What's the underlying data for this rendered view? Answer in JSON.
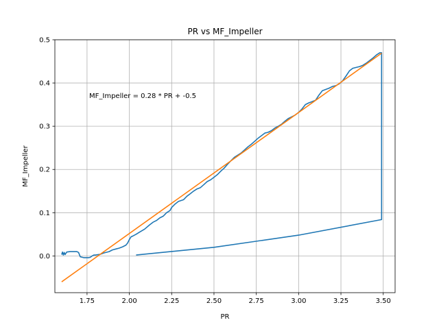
{
  "chart_data": {
    "type": "line",
    "title": "PR vs MF_Impeller",
    "xlabel": "PR",
    "ylabel": "MF_Impeller",
    "xlim": [
      1.56,
      3.57
    ],
    "ylim": [
      -0.085,
      0.5
    ],
    "x_ticks": [
      1.75,
      2.0,
      2.25,
      2.5,
      2.75,
      3.0,
      3.25,
      3.5
    ],
    "x_tick_labels": [
      "1.75",
      "2.00",
      "2.25",
      "2.50",
      "2.75",
      "3.00",
      "3.25",
      "3.50"
    ],
    "y_ticks": [
      0.0,
      0.1,
      0.2,
      0.3,
      0.4,
      0.5
    ],
    "y_tick_labels": [
      "0.0",
      "0.1",
      "0.2",
      "0.3",
      "0.4",
      "0.5"
    ],
    "grid": true,
    "annotation": "MF_Impeller = 0.28 * PR + -0.5",
    "series": [
      {
        "color": "#1f77b4",
        "x": [
          1.6,
          1.605,
          1.61,
          1.615,
          1.62,
          1.63,
          1.65,
          1.69,
          1.7,
          1.71,
          1.73,
          1.76,
          1.77,
          1.78,
          1.79,
          1.8,
          1.83,
          1.85,
          1.88,
          1.9,
          1.92,
          1.94,
          1.96,
          1.98,
          1.99,
          2.0,
          2.01,
          2.02,
          2.04,
          2.06,
          2.09,
          2.12,
          2.14,
          2.16,
          2.18,
          2.2,
          2.22,
          2.24,
          2.25,
          2.27,
          2.29,
          2.32,
          2.34,
          2.36,
          2.38,
          2.4,
          2.42,
          2.44,
          2.46,
          2.48,
          2.5,
          2.52,
          2.54,
          2.56,
          2.58,
          2.6,
          2.62,
          2.64,
          2.66,
          2.68,
          2.7,
          2.72,
          2.74,
          2.76,
          2.78,
          2.8,
          2.82,
          2.84,
          2.86,
          2.88,
          2.9,
          2.92,
          2.94,
          2.96,
          2.98,
          3.0,
          3.02,
          3.04,
          3.06,
          3.08,
          3.1,
          3.12,
          3.14,
          3.16,
          3.18,
          3.2,
          3.22,
          3.24,
          3.26,
          3.28,
          3.3,
          3.32,
          3.34,
          3.36,
          3.38,
          3.4,
          3.42,
          3.44,
          3.46,
          3.48,
          3.49,
          3.49,
          3.49,
          3.0,
          2.5,
          2.04
        ],
        "y": [
          0.003,
          0.009,
          0.002,
          0.008,
          0.003,
          0.009,
          0.01,
          0.01,
          0.008,
          -0.002,
          -0.004,
          -0.004,
          -0.003,
          0.0,
          0.002,
          0.002,
          0.004,
          0.007,
          0.01,
          0.014,
          0.016,
          0.018,
          0.021,
          0.025,
          0.03,
          0.038,
          0.044,
          0.046,
          0.05,
          0.055,
          0.062,
          0.072,
          0.078,
          0.082,
          0.088,
          0.092,
          0.1,
          0.105,
          0.112,
          0.12,
          0.126,
          0.13,
          0.138,
          0.144,
          0.15,
          0.155,
          0.158,
          0.165,
          0.172,
          0.176,
          0.182,
          0.188,
          0.196,
          0.203,
          0.212,
          0.22,
          0.228,
          0.233,
          0.238,
          0.245,
          0.252,
          0.258,
          0.265,
          0.272,
          0.278,
          0.284,
          0.286,
          0.29,
          0.296,
          0.3,
          0.305,
          0.312,
          0.318,
          0.322,
          0.326,
          0.332,
          0.34,
          0.35,
          0.354,
          0.357,
          0.36,
          0.372,
          0.382,
          0.385,
          0.388,
          0.392,
          0.394,
          0.398,
          0.405,
          0.416,
          0.428,
          0.434,
          0.436,
          0.438,
          0.441,
          0.446,
          0.452,
          0.458,
          0.465,
          0.47,
          0.47,
          0.3,
          0.084,
          0.048,
          0.02,
          0.002
        ]
      },
      {
        "color": "#ff7f0e",
        "x": [
          1.6,
          3.49
        ],
        "y": [
          -0.06,
          0.469
        ]
      }
    ]
  }
}
